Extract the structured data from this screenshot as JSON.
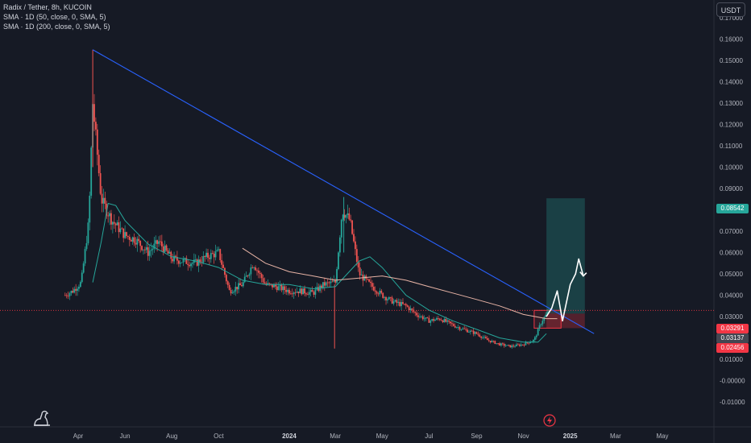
{
  "legend": {
    "title": "Radix / Tether, 8h, KUCOIN",
    "sma1": "SMA · 1D (50, close, 0, SMA, 5)",
    "sma2": "SMA · 1D (200, close, 0, SMA, 5)"
  },
  "currency_button": "USDT",
  "price_tags": {
    "target": "0.08542",
    "entry_high": "0.03291",
    "current": "0.03137",
    "stop": "0.02456"
  },
  "colors": {
    "background": "#161a25",
    "sma50": "#26a69a",
    "sma200": "#e8b4a6",
    "trendline": "#2962ff",
    "target_tag": "#26a69a",
    "stop_tag": "#f23645",
    "up_candle": "#26a69a",
    "down_candle": "#ef5350"
  },
  "icons": {
    "logo": "tradingview-dino-icon",
    "flash": "lightning-icon"
  },
  "chart_data": {
    "type": "candlestick",
    "title": "Radix / Tether, 8h, KUCOIN",
    "ylabel": "USDT",
    "ylim": [
      -0.01,
      0.17
    ],
    "y_ticks": [
      "0.17000",
      "0.16000",
      "0.15000",
      "0.14000",
      "0.13000",
      "0.12000",
      "0.11000",
      "0.10000",
      "0.09000",
      "0.08000",
      "0.07000",
      "0.06000",
      "0.05000",
      "0.04000",
      "0.03000",
      "0.02000",
      "0.01000",
      "-0.00000",
      "-0.01000"
    ],
    "x_ticks": [
      "Apr",
      "Jun",
      "Aug",
      "Oct",
      "2024",
      "Mar",
      "May",
      "Jul",
      "Sep",
      "Nov",
      "2025",
      "Mar",
      "May"
    ],
    "x_tick_dates": [
      "2023-04-01",
      "2023-06-01",
      "2023-08-01",
      "2023-10-01",
      "2024-01-01",
      "2024-03-01",
      "2024-05-01",
      "2024-07-01",
      "2024-09-01",
      "2024-11-01",
      "2025-01-01",
      "2025-03-01",
      "2025-05-01"
    ],
    "price_path": [
      [
        "2023-03-15",
        0.04
      ],
      [
        "2023-03-25",
        0.042
      ],
      [
        "2023-04-05",
        0.046
      ],
      [
        "2023-04-15",
        0.075
      ],
      [
        "2023-04-20",
        0.13
      ],
      [
        "2023-04-25",
        0.11
      ],
      [
        "2023-05-01",
        0.085
      ],
      [
        "2023-05-15",
        0.075
      ],
      [
        "2023-06-01",
        0.068
      ],
      [
        "2023-06-15",
        0.066
      ],
      [
        "2023-07-01",
        0.06
      ],
      [
        "2023-07-15",
        0.065
      ],
      [
        "2023-08-01",
        0.057
      ],
      [
        "2023-08-15",
        0.056
      ],
      [
        "2023-09-01",
        0.055
      ],
      [
        "2023-09-15",
        0.058
      ],
      [
        "2023-10-01",
        0.06
      ],
      [
        "2023-10-15",
        0.042
      ],
      [
        "2023-11-01",
        0.045
      ],
      [
        "2023-11-15",
        0.055
      ],
      [
        "2023-12-01",
        0.045
      ],
      [
        "2023-12-15",
        0.044
      ],
      [
        "2024-01-01",
        0.042
      ],
      [
        "2024-01-15",
        0.042
      ],
      [
        "2024-02-01",
        0.041
      ],
      [
        "2024-02-15",
        0.045
      ],
      [
        "2024-03-01",
        0.046
      ],
      [
        "2024-03-10",
        0.08
      ],
      [
        "2024-03-20",
        0.075
      ],
      [
        "2024-04-01",
        0.05
      ],
      [
        "2024-04-15",
        0.045
      ],
      [
        "2024-05-01",
        0.04
      ],
      [
        "2024-05-15",
        0.037
      ],
      [
        "2024-06-01",
        0.035
      ],
      [
        "2024-06-15",
        0.031
      ],
      [
        "2024-07-01",
        0.028
      ],
      [
        "2024-07-15",
        0.029
      ],
      [
        "2024-08-01",
        0.026
      ],
      [
        "2024-08-15",
        0.024
      ],
      [
        "2024-09-01",
        0.022
      ],
      [
        "2024-09-15",
        0.019
      ],
      [
        "2024-10-01",
        0.017
      ],
      [
        "2024-10-15",
        0.016
      ],
      [
        "2024-11-01",
        0.017
      ],
      [
        "2024-11-15",
        0.019
      ],
      [
        "2024-11-25",
        0.028
      ],
      [
        "2024-12-05",
        0.033
      ]
    ],
    "series": [
      {
        "name": "SMA · 1D (50, close, 0, SMA, 5)",
        "color": "#26a69a",
        "points": [
          [
            "2023-04-20",
            0.046
          ],
          [
            "2023-05-01",
            0.065
          ],
          [
            "2023-05-10",
            0.083
          ],
          [
            "2023-05-20",
            0.082
          ],
          [
            "2023-06-01",
            0.075
          ],
          [
            "2023-07-01",
            0.064
          ],
          [
            "2023-08-01",
            0.058
          ],
          [
            "2023-09-01",
            0.056
          ],
          [
            "2023-10-01",
            0.053
          ],
          [
            "2023-11-01",
            0.047
          ],
          [
            "2023-12-01",
            0.045
          ],
          [
            "2024-01-01",
            0.045
          ],
          [
            "2024-02-01",
            0.043
          ],
          [
            "2024-03-01",
            0.044
          ],
          [
            "2024-04-01",
            0.056
          ],
          [
            "2024-04-15",
            0.058
          ],
          [
            "2024-05-01",
            0.053
          ],
          [
            "2024-06-01",
            0.04
          ],
          [
            "2024-07-01",
            0.033
          ],
          [
            "2024-08-01",
            0.028
          ],
          [
            "2024-09-01",
            0.024
          ],
          [
            "2024-10-01",
            0.02
          ],
          [
            "2024-11-01",
            0.018
          ],
          [
            "2024-11-20",
            0.018
          ],
          [
            "2024-12-01",
            0.022
          ]
        ]
      },
      {
        "name": "SMA · 1D (200, close, 0, SMA, 5)",
        "color": "#e8b4a6",
        "points": [
          [
            "2023-11-01",
            0.062
          ],
          [
            "2023-12-01",
            0.055
          ],
          [
            "2024-01-01",
            0.051
          ],
          [
            "2024-02-01",
            0.049
          ],
          [
            "2024-03-01",
            0.047
          ],
          [
            "2024-04-01",
            0.048
          ],
          [
            "2024-05-01",
            0.049
          ],
          [
            "2024-06-01",
            0.047
          ],
          [
            "2024-07-01",
            0.044
          ],
          [
            "2024-08-01",
            0.041
          ],
          [
            "2024-09-01",
            0.038
          ],
          [
            "2024-10-01",
            0.035
          ],
          [
            "2024-11-01",
            0.031
          ],
          [
            "2024-12-01",
            0.029
          ],
          [
            "2024-12-15",
            0.029
          ]
        ]
      }
    ],
    "annotations": {
      "trendline": [
        [
          "2023-04-20",
          0.155
        ],
        [
          "2025-02-01",
          0.022
        ]
      ],
      "dotted_level": 0.03291,
      "long_position": {
        "start": "2024-12-01",
        "end": "2025-01-20",
        "entry": 0.03137,
        "target": 0.08542,
        "stop": 0.02456
      },
      "entry_box": {
        "start": "2024-11-15",
        "end": "2024-12-20",
        "top": 0.03291,
        "bottom": 0.02456
      },
      "projection_arrow": [
        [
          "2024-12-01",
          0.03
        ],
        [
          "2024-12-08",
          0.034
        ],
        [
          "2024-12-15",
          0.042
        ],
        [
          "2024-12-22",
          0.028
        ],
        [
          "2025-01-01",
          0.045
        ],
        [
          "2025-01-08",
          0.05
        ],
        [
          "2025-01-12",
          0.057
        ],
        [
          "2025-01-18",
          0.049
        ]
      ]
    }
  }
}
